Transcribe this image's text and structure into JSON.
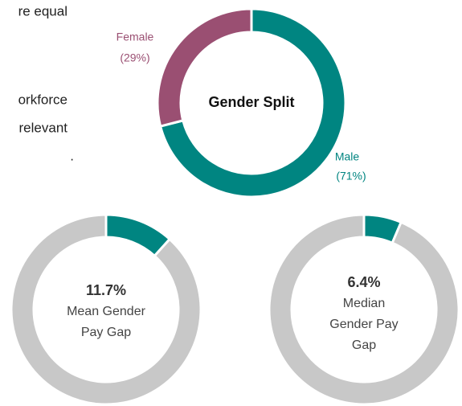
{
  "text_fragments": [
    "re equal",
    "orkforce",
    "relevant",
    "."
  ],
  "chart_data": [
    {
      "type": "donut",
      "title": "Gender Split",
      "categories": [
        "Female",
        "Male"
      ],
      "values": [
        29,
        71
      ],
      "value_labels": [
        "(29%)",
        "(71%)"
      ],
      "colors": [
        "#9a4f72",
        "#008581"
      ],
      "start": "Male"
    },
    {
      "type": "donut",
      "title_lines": [
        "Mean Gender",
        "Pay Gap"
      ],
      "values": [
        11.7,
        88.3
      ],
      "value_labels": [
        "11.7%",
        null
      ],
      "colors": [
        "#008581",
        "#c8c8c8"
      ]
    },
    {
      "type": "donut",
      "title_lines": [
        "Median",
        "Gender Pay",
        "Gap"
      ],
      "values": [
        6.4,
        93.6
      ],
      "value_labels": [
        "6.4%",
        null
      ],
      "colors": [
        "#008581",
        "#c8c8c8"
      ]
    }
  ]
}
